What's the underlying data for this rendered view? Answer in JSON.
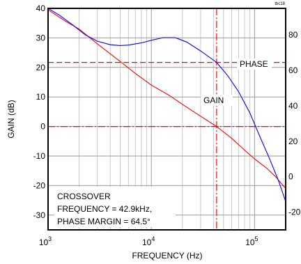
{
  "chart_data": {
    "type": "line",
    "xlabel": "FREQUENCY (Hz)",
    "ylabel": "GAIN (dB)",
    "x_scale": "log",
    "xlim": [
      1000,
      200000
    ],
    "ylim": [
      -35,
      40
    ],
    "y2lim": [
      -30,
      95
    ],
    "grid": true,
    "figure_id": "tbc18",
    "x_ticks": [
      {
        "value": 1000,
        "base": "10",
        "exp": "3"
      },
      {
        "value": 10000,
        "base": "10",
        "exp": "4"
      },
      {
        "value": 100000,
        "base": "10",
        "exp": "5"
      }
    ],
    "y_ticks": [
      {
        "value": 40,
        "label": "40"
      },
      {
        "value": 30,
        "label": "30"
      },
      {
        "value": 20,
        "label": "20"
      },
      {
        "value": 10,
        "label": "10"
      },
      {
        "value": 0,
        "label": "0"
      },
      {
        "value": -10,
        "label": "-10"
      },
      {
        "value": -20,
        "label": "-20"
      },
      {
        "value": -30,
        "label": "-30"
      }
    ],
    "y2_ticks": [
      {
        "value": 80,
        "label": "80"
      },
      {
        "value": 60,
        "label": "60"
      },
      {
        "value": 40,
        "label": "40"
      },
      {
        "value": 20,
        "label": "20"
      },
      {
        "value": 0,
        "label": "0"
      },
      {
        "value": -20,
        "label": "-20"
      }
    ],
    "series": [
      {
        "name": "GAIN",
        "axis": "left",
        "color": "#ff0000",
        "points": [
          [
            1000,
            39.5
          ],
          [
            1500,
            35.5
          ],
          [
            2000,
            33
          ],
          [
            3000,
            28
          ],
          [
            5000,
            22
          ],
          [
            7000,
            18
          ],
          [
            10000,
            14
          ],
          [
            15000,
            10.5
          ],
          [
            20000,
            7.5
          ],
          [
            30000,
            3.5
          ],
          [
            42900,
            0
          ],
          [
            60000,
            -4
          ],
          [
            80000,
            -8
          ],
          [
            100000,
            -11
          ],
          [
            130000,
            -14
          ],
          [
            160000,
            -17
          ],
          [
            200000,
            -21
          ]
        ]
      },
      {
        "name": "PHASE",
        "axis": "right",
        "color": "#0000ff",
        "points": [
          [
            1000,
            95
          ],
          [
            1300,
            91
          ],
          [
            1700,
            86
          ],
          [
            2300,
            80
          ],
          [
            3000,
            76.5
          ],
          [
            4000,
            74.5
          ],
          [
            5000,
            74
          ],
          [
            6000,
            74.3
          ],
          [
            8000,
            75.5
          ],
          [
            10000,
            77
          ],
          [
            13000,
            78.5
          ],
          [
            17000,
            78.5
          ],
          [
            22000,
            76
          ],
          [
            30000,
            71
          ],
          [
            42900,
            64.5
          ],
          [
            55000,
            57
          ],
          [
            70000,
            48
          ],
          [
            90000,
            36
          ],
          [
            110000,
            24
          ],
          [
            140000,
            10
          ],
          [
            170000,
            -2
          ],
          [
            200000,
            -14
          ]
        ]
      }
    ],
    "reference_lines": [
      {
        "axis": "x",
        "value": 42900,
        "color": "#ff0000",
        "style": "dash-dot"
      },
      {
        "axis": "y",
        "value": 0,
        "color": "#ff0000",
        "style": "dash-dot"
      },
      {
        "axis": "y2",
        "value": 64.5,
        "color": "#ff0000",
        "style": "dash"
      }
    ],
    "annotations": {
      "phase_label": "PHASE",
      "gain_label": "GAIN",
      "crossover": [
        "CROSSOVER",
        "FREQUENCY = 42.9kHz,",
        "PHASE MARGIN = 64.5°"
      ]
    }
  }
}
